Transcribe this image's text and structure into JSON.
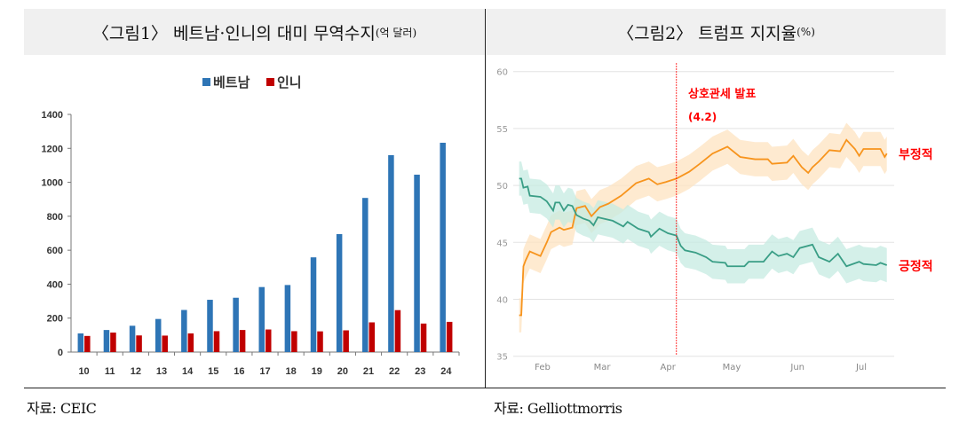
{
  "figure1": {
    "title": "〈그림1〉 베트남·인니의 대미 무역수지",
    "title_unit": "(억 달러)",
    "source": "자료: CEIC"
  },
  "figure2": {
    "title": "〈그림2〉 트럼프 지지율",
    "title_unit": "(%)",
    "source": "자료: Gelliottmorris"
  },
  "chart_data": [
    {
      "type": "bar",
      "categories": [
        "10",
        "11",
        "12",
        "13",
        "14",
        "15",
        "16",
        "17",
        "18",
        "19",
        "20",
        "21",
        "22",
        "23",
        "24"
      ],
      "series": [
        {
          "name": "베트남",
          "color": "#2e75b6",
          "values": [
            110,
            130,
            155,
            195,
            248,
            308,
            320,
            383,
            395,
            558,
            695,
            908,
            1160,
            1045,
            1233
          ]
        },
        {
          "name": "인니",
          "color": "#c00000",
          "values": [
            95,
            115,
            98,
            97,
            110,
            123,
            130,
            133,
            123,
            122,
            128,
            175,
            247,
            168,
            178
          ]
        }
      ],
      "ylim": [
        0,
        1400
      ],
      "yticks": [
        "0",
        "200",
        "400",
        "600",
        "800",
        "1000",
        "1200",
        "1400"
      ],
      "legend": "top-center",
      "grid": false
    },
    {
      "type": "line",
      "ylim": [
        35,
        60
      ],
      "yticks": [
        "35",
        "40",
        "45",
        "50",
        "55",
        "60"
      ],
      "xticks": [
        {
          "label": "Feb",
          "date": "02-01"
        },
        {
          "label": "Mar",
          "date": "03-01"
        },
        {
          "label": "Apr",
          "date": "04-01"
        },
        {
          "label": "May",
          "date": "05-01"
        },
        {
          "label": "Jun",
          "date": "06-01"
        },
        {
          "label": "Jul",
          "date": "07-01"
        }
      ],
      "grid": true,
      "band_halfwidth": 1.5,
      "annotation": {
        "date": "04-05",
        "line1": "상호관세 발표",
        "line2": "(4.2)",
        "color": "#ff0000"
      },
      "series": [
        {
          "name": "부정적",
          "color": "#f7941d",
          "band_color": "#fde3c0",
          "points": [
            [
              "01-21",
              38.6
            ],
            [
              "01-22",
              38.6
            ],
            [
              "01-23",
              42.9
            ],
            [
              "01-24",
              43.4
            ],
            [
              "01-26",
              44.2
            ],
            [
              "01-31",
              43.8
            ],
            [
              "02-03",
              45
            ],
            [
              "02-05",
              45.9
            ],
            [
              "02-09",
              46.3
            ],
            [
              "02-11",
              46.1
            ],
            [
              "02-15",
              46.3
            ],
            [
              "02-17",
              48
            ],
            [
              "02-21",
              48.2
            ],
            [
              "02-24",
              47.3
            ],
            [
              "02-28",
              48.1
            ],
            [
              "03-04",
              48.4
            ],
            [
              "03-10",
              49.1
            ],
            [
              "03-17",
              50.2
            ],
            [
              "03-23",
              50.6
            ],
            [
              "03-27",
              50.1
            ],
            [
              "03-31",
              50.3
            ],
            [
              "04-05",
              50.6
            ],
            [
              "04-11",
              51.2
            ],
            [
              "04-16",
              51.9
            ],
            [
              "04-22",
              52.8
            ],
            [
              "04-29",
              53.4
            ],
            [
              "05-05",
              52.5
            ],
            [
              "05-12",
              52.3
            ],
            [
              "05-18",
              52.3
            ],
            [
              "05-20",
              51.9
            ],
            [
              "05-27",
              52
            ],
            [
              "05-30",
              52.6
            ],
            [
              "06-03",
              51.6
            ],
            [
              "06-06",
              51.1
            ],
            [
              "06-08",
              51.6
            ],
            [
              "06-11",
              52.1
            ],
            [
              "06-16",
              53.1
            ],
            [
              "06-21",
              53
            ],
            [
              "06-24",
              54
            ],
            [
              "06-28",
              53.2
            ],
            [
              "06-30",
              52.6
            ],
            [
              "07-02",
              53.2
            ],
            [
              "07-10",
              53.2
            ],
            [
              "07-12",
              52.5
            ],
            [
              "07-13",
              52.8
            ]
          ]
        },
        {
          "name": "긍정적",
          "color": "#3a9e86",
          "band_color": "#c6ebe1",
          "points": [
            [
              "01-21",
              50.6
            ],
            [
              "01-22",
              50.6
            ],
            [
              "01-23",
              49.8
            ],
            [
              "01-25",
              49.9
            ],
            [
              "01-26",
              49.1
            ],
            [
              "01-31",
              49
            ],
            [
              "02-03",
              48.6
            ],
            [
              "02-06",
              47.8
            ],
            [
              "02-07",
              48.5
            ],
            [
              "02-09",
              48.5
            ],
            [
              "02-11",
              47.8
            ],
            [
              "02-13",
              48.3
            ],
            [
              "02-15",
              48.2
            ],
            [
              "02-17",
              47.4
            ],
            [
              "02-20",
              47.1
            ],
            [
              "02-23",
              46.9
            ],
            [
              "02-25",
              46.5
            ],
            [
              "02-27",
              47.2
            ],
            [
              "03-06",
              46.9
            ],
            [
              "03-11",
              46.4
            ],
            [
              "03-13",
              46.8
            ],
            [
              "03-18",
              46.2
            ],
            [
              "03-23",
              45.9
            ],
            [
              "03-24",
              45.5
            ],
            [
              "03-28",
              46.2
            ],
            [
              "04-01",
              45.8
            ],
            [
              "04-05",
              45.6
            ],
            [
              "04-07",
              44.7
            ],
            [
              "04-09",
              44.3
            ],
            [
              "04-14",
              44.1
            ],
            [
              "04-19",
              43.7
            ],
            [
              "04-22",
              43.3
            ],
            [
              "04-28",
              43.2
            ],
            [
              "04-29",
              42.9
            ],
            [
              "05-07",
              42.9
            ],
            [
              "05-09",
              43.3
            ],
            [
              "05-16",
              43.3
            ],
            [
              "05-20",
              44.2
            ],
            [
              "05-23",
              43.8
            ],
            [
              "05-27",
              44
            ],
            [
              "05-30",
              43.7
            ],
            [
              "06-02",
              44.5
            ],
            [
              "06-08",
              44.8
            ],
            [
              "06-11",
              43.7
            ],
            [
              "06-16",
              43.3
            ],
            [
              "06-20",
              44
            ],
            [
              "06-24",
              42.9
            ],
            [
              "06-30",
              43.3
            ],
            [
              "07-02",
              43.1
            ],
            [
              "07-08",
              43
            ],
            [
              "07-10",
              43.2
            ],
            [
              "07-13",
              43
            ]
          ]
        }
      ]
    }
  ]
}
